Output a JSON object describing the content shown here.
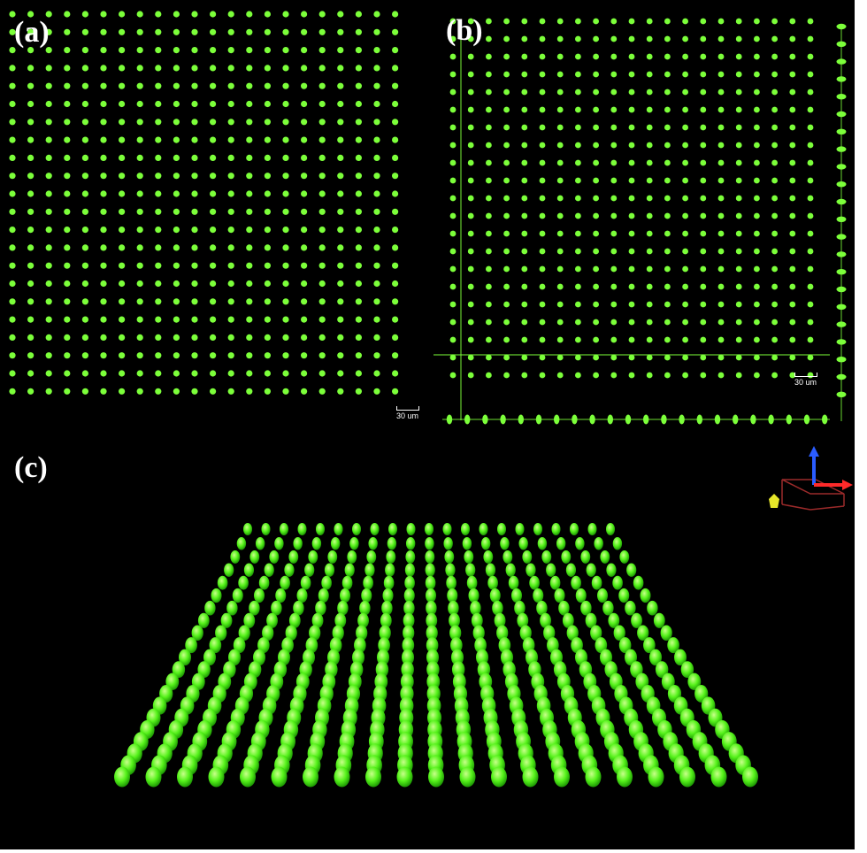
{
  "figure": {
    "panels": [
      {
        "id": "a",
        "label": "(a)",
        "scale_bar": "30 um"
      },
      {
        "id": "b",
        "label": "(b)",
        "scale_bar": "30 um"
      },
      {
        "id": "c",
        "label": "(c)"
      }
    ]
  },
  "colors": {
    "dot": "#7cff3a",
    "background": "#000000",
    "axis_z": "#2a5cff",
    "axis_x": "#ff2a2a",
    "axis_y": "#e6e62a",
    "box": "#9b2a2a"
  },
  "icons": [
    "axis-orientation-icon"
  ]
}
